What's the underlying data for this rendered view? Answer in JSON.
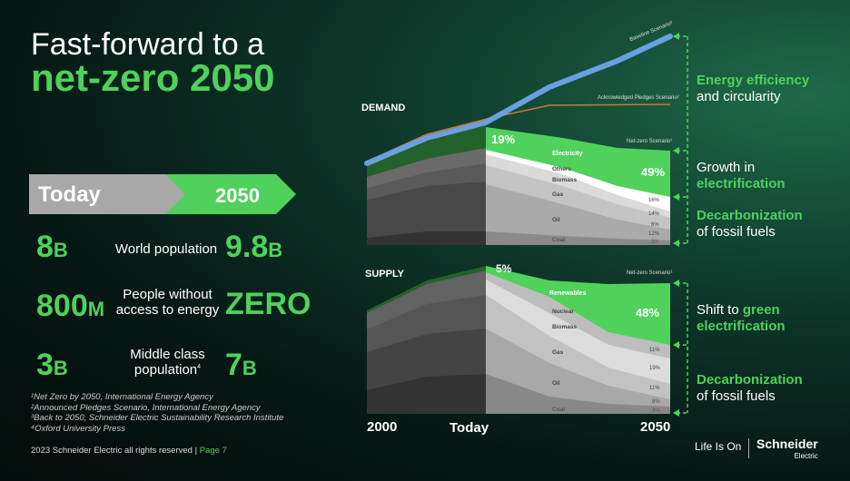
{
  "title": {
    "line1": "Fast-forward to a",
    "line2": "net-zero 2050"
  },
  "arrow": {
    "today": "Today",
    "year": "2050"
  },
  "stats": [
    {
      "today": "8",
      "today_unit": "B",
      "label": "World population",
      "future": "9.8",
      "future_unit": "B"
    },
    {
      "today": "800",
      "today_unit": "M",
      "label": "People without access to energy",
      "future": "ZERO",
      "future_unit": ""
    },
    {
      "today": "3",
      "today_unit": "B",
      "label": "Middle class population",
      "label_sup": "4",
      "future": "7",
      "future_unit": "B"
    }
  ],
  "footnotes": [
    "¹Net Zero by 2050, International Energy Agency",
    "²Announced Pledges Scenario, International Energy Agency",
    "³Back to 2050, Schneider Electric Sustainability Research Institute",
    "⁴Oxford University Press"
  ],
  "footer": {
    "copyright": "2023 Schneider Electric all rights reserved | ",
    "page": "Page 7"
  },
  "demand": {
    "title": "DEMAND",
    "baseline": "Baseline Scenario³",
    "pledges": "Acknowledged Pledges Scenario²",
    "netzero": "Net-zero Scenario¹",
    "today_pct": "19%",
    "pct_2050": "49%",
    "layers": [
      "Electricity",
      "Others",
      "Biomass",
      "Gas",
      "Oil",
      "Coal"
    ],
    "end_pcts": [
      "16%",
      "14%",
      "6%",
      "12%",
      "3%"
    ]
  },
  "supply": {
    "title": "SUPPLY",
    "netzero": "Net-zero Scenario¹",
    "today_pct": "5%",
    "pct_2050": "48%",
    "layers": [
      "Renewables",
      "Nuclear",
      "Biomass",
      "Gas",
      "Oil",
      "Coal"
    ],
    "end_pcts": [
      "11%",
      "19%",
      "11%",
      "8%",
      "3%"
    ]
  },
  "axis": {
    "start": "2000",
    "today": "Today",
    "end": "2050"
  },
  "annotations": {
    "a1": {
      "green": "Energy efficiency",
      "white": "and circularity"
    },
    "a2": {
      "white": "Growth in",
      "green": "electrification"
    },
    "a3": {
      "green": "Decarbonization",
      "white": "of fossil fuels"
    },
    "a4": {
      "white": "Shift to ",
      "green1": "green",
      "green2": "electrification"
    },
    "a5": {
      "green": "Decarbonization",
      "white": "of fossil fuels"
    }
  },
  "brand": {
    "tagline": "Life Is On",
    "name": "Schneider",
    "sub": "Electric"
  },
  "colors": {
    "accent": "#4fd15c",
    "baseline": "#6a9fe0",
    "pledges": "#c87a30"
  }
}
